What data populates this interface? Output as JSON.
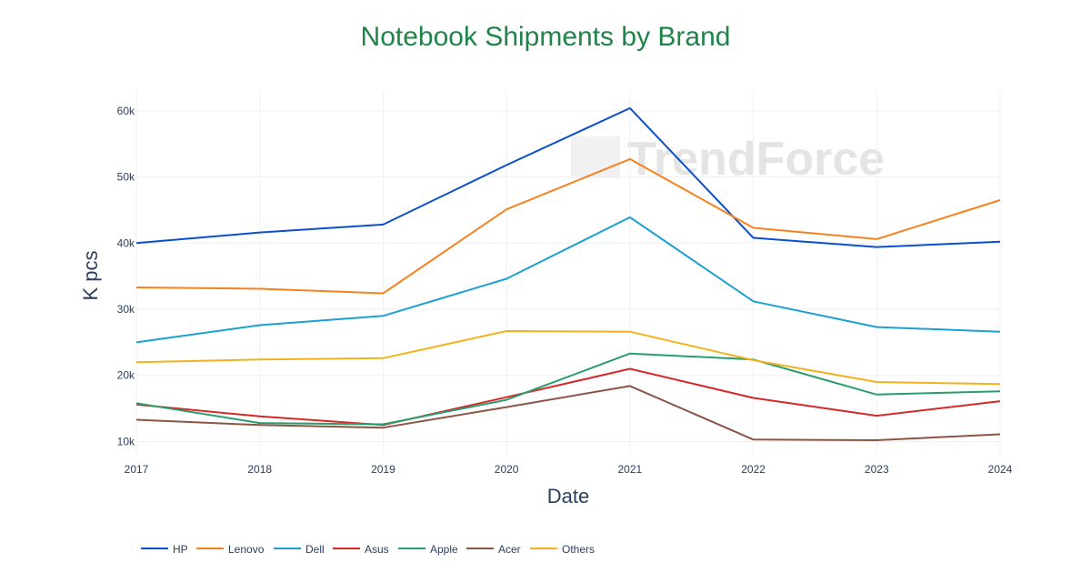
{
  "watermark": "TrendForce",
  "chart_data": {
    "type": "line",
    "title": "Notebook Shipments by Brand",
    "title_color": "#1e8449",
    "xlabel": "Date",
    "ylabel": "K pcs",
    "x": [
      "2017",
      "2018",
      "2019",
      "2020",
      "2021",
      "2022",
      "2023",
      "2024"
    ],
    "ylim": [
      8000,
      63000
    ],
    "yticks": [
      10000,
      20000,
      30000,
      40000,
      50000,
      60000
    ],
    "ytick_labels": [
      "10k",
      "20k",
      "30k",
      "40k",
      "50k",
      "60k"
    ],
    "grid": true,
    "legend_position": "bottom",
    "series": [
      {
        "name": "HP",
        "color": "#0a4fcc",
        "values": [
          40000,
          41600,
          42800,
          51800,
          60400,
          40800,
          39400,
          40200
        ]
      },
      {
        "name": "Lenovo",
        "color": "#f5821f",
        "values": [
          33300,
          33100,
          32400,
          45100,
          52700,
          42300,
          40600,
          46500
        ]
      },
      {
        "name": "Dell",
        "color": "#1aa0d1",
        "values": [
          25000,
          27600,
          29000,
          34600,
          43900,
          31200,
          27300,
          26600
        ]
      },
      {
        "name": "Asus",
        "color": "#d62828",
        "values": [
          15600,
          13800,
          12500,
          16700,
          21000,
          16600,
          13900,
          16100
        ]
      },
      {
        "name": "Apple",
        "color": "#2a9d6e",
        "values": [
          15800,
          12800,
          12600,
          16300,
          23300,
          22400,
          17100,
          17600
        ]
      },
      {
        "name": "Acer",
        "color": "#8c5543",
        "values": [
          13300,
          12500,
          12100,
          15200,
          18400,
          10300,
          10200,
          11100
        ]
      },
      {
        "name": "Others",
        "color": "#f2b21c",
        "values": [
          22000,
          22400,
          22600,
          26700,
          26600,
          22300,
          19000,
          18700
        ]
      }
    ]
  }
}
